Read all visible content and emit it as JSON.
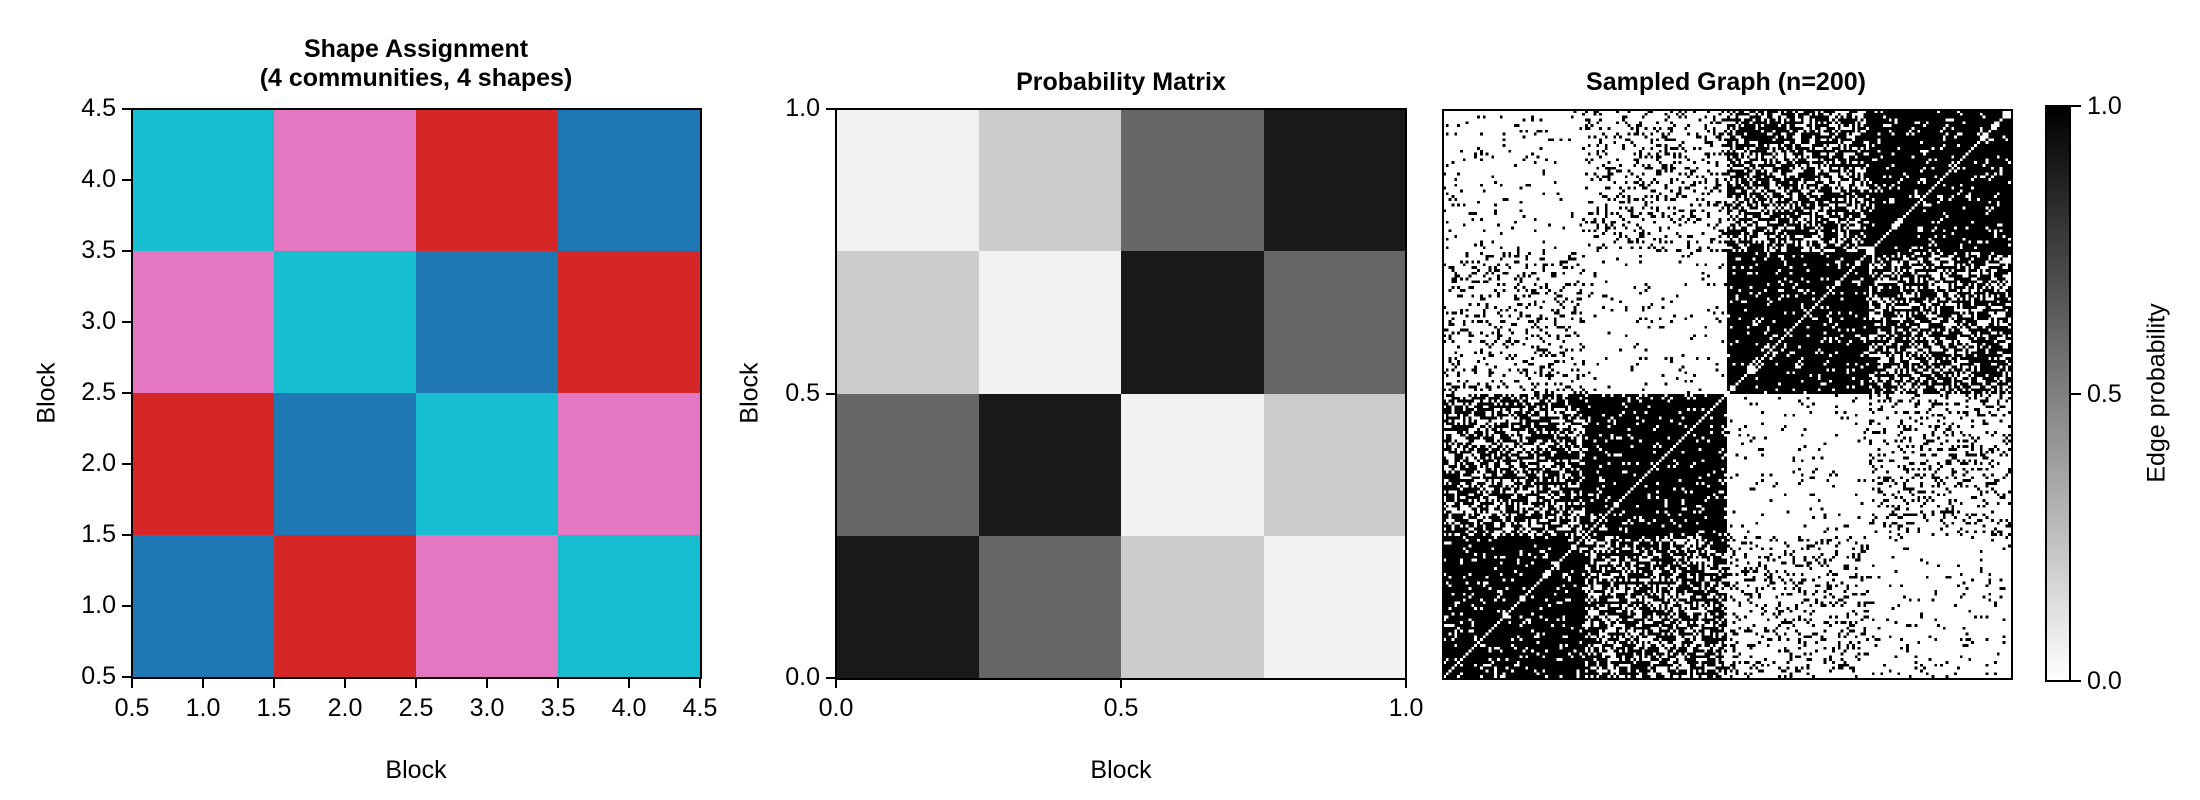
{
  "chart_data": [
    {
      "type": "heatmap",
      "title": "Shape Assignment\n(4 communities, 4 shapes)",
      "title_lines": [
        "Shape Assignment",
        "(4 communities, 4 shapes)"
      ],
      "xlabel": "Block",
      "ylabel": "Block",
      "xlim": [
        0.5,
        4.5
      ],
      "ylim": [
        0.5,
        4.5
      ],
      "xticks": [
        "0.5",
        "1.0",
        "1.5",
        "2.0",
        "2.5",
        "3.0",
        "3.5",
        "4.0",
        "4.5"
      ],
      "yticks": [
        "0.5",
        "1.0",
        "1.5",
        "2.0",
        "2.5",
        "3.0",
        "3.5",
        "4.0",
        "4.5"
      ],
      "palette": {
        "A": "#1f77b4",
        "B": "#d62728",
        "C": "#e377c2",
        "D": "#17becf"
      },
      "rows_top_to_bottom": [
        [
          "#17becf",
          "#e377c2",
          "#d62728",
          "#1f77b4"
        ],
        [
          "#e377c2",
          "#17becf",
          "#1f77b4",
          "#d62728"
        ],
        [
          "#d62728",
          "#1f77b4",
          "#17becf",
          "#e377c2"
        ],
        [
          "#1f77b4",
          "#d62728",
          "#e377c2",
          "#17becf"
        ]
      ]
    },
    {
      "type": "heatmap",
      "title": "Probability Matrix",
      "xlabel": "Block",
      "ylabel": "Block",
      "xlim": [
        0.0,
        1.0
      ],
      "ylim": [
        0.0,
        1.0
      ],
      "xticks": [
        "0.0",
        "0.5",
        "1.0"
      ],
      "yticks": [
        "0.0",
        "0.5",
        "1.0"
      ],
      "colormap": "gray_r",
      "values_top_to_bottom": [
        [
          0.05,
          0.2,
          0.6,
          0.9
        ],
        [
          0.2,
          0.05,
          0.9,
          0.6
        ],
        [
          0.6,
          0.9,
          0.05,
          0.2
        ],
        [
          0.9,
          0.6,
          0.2,
          0.05
        ]
      ]
    },
    {
      "type": "heatmap",
      "title": "Sampled Graph (n=200)",
      "n": 200,
      "block_size": 50,
      "colormap": "gray_r",
      "diagonal": 0,
      "block_probs_bottom_to_top": [
        [
          0.9,
          0.6,
          0.2,
          0.05
        ],
        [
          0.6,
          0.9,
          0.05,
          0.2
        ],
        [
          0.2,
          0.05,
          0.9,
          0.6
        ],
        [
          0.05,
          0.2,
          0.6,
          0.9
        ]
      ],
      "colorbar": {
        "label": "Edge probability",
        "ticks": [
          "0.0",
          "0.5",
          "1.0"
        ],
        "range": [
          0.0,
          1.0
        ]
      }
    }
  ],
  "panel1": {
    "title_line1": "Shape Assignment",
    "title_line2": "(4 communities, 4 shapes)",
    "xlabel": "Block",
    "ylabel": "Block",
    "xticks": [
      "0.5",
      "1.0",
      "1.5",
      "2.0",
      "2.5",
      "3.0",
      "3.5",
      "4.0",
      "4.5"
    ],
    "yticks": [
      "0.5",
      "1.0",
      "1.5",
      "2.0",
      "2.5",
      "3.0",
      "3.5",
      "4.0",
      "4.5"
    ]
  },
  "panel2": {
    "title": "Probability Matrix",
    "xlabel": "Block",
    "ylabel": "Block",
    "xticks": [
      "0.0",
      "0.5",
      "1.0"
    ],
    "yticks": [
      "0.0",
      "0.5",
      "1.0"
    ]
  },
  "panel3": {
    "title": "Sampled Graph (n=200)"
  },
  "colorbar": {
    "label": "Edge probability",
    "ticks": [
      "0.0",
      "0.5",
      "1.0"
    ]
  }
}
